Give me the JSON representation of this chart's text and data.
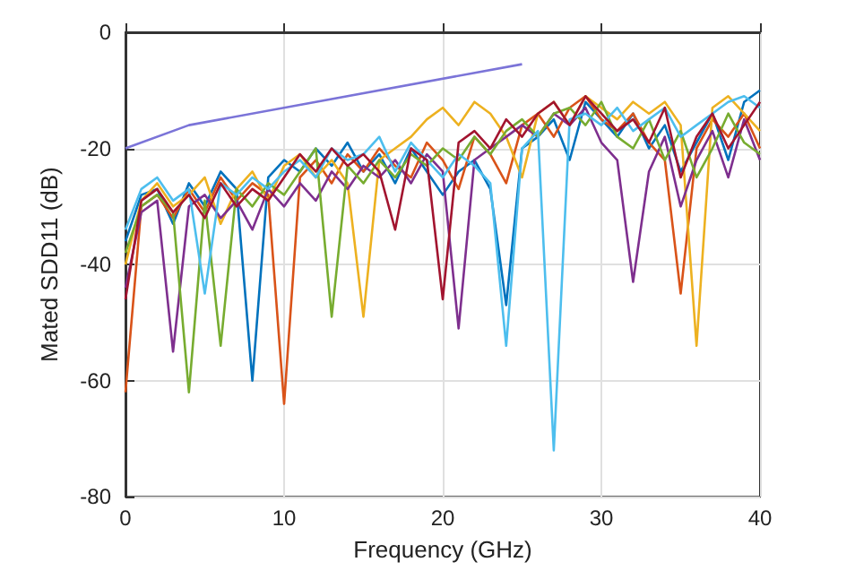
{
  "chart_data": {
    "type": "line",
    "xlabel": "Frequency (GHz)",
    "ylabel": "Mated SDD11 (dB)",
    "x": [
      0,
      1,
      2,
      3,
      4,
      5,
      6,
      7,
      8,
      9,
      10,
      11,
      12,
      13,
      14,
      15,
      16,
      17,
      18,
      19,
      20,
      21,
      22,
      23,
      24,
      25,
      26,
      27,
      28,
      29,
      30,
      31,
      32,
      33,
      34,
      35,
      36,
      37,
      38,
      39,
      40
    ],
    "xlim": [
      0,
      40
    ],
    "xticks": [
      0,
      10,
      20,
      30,
      40
    ],
    "ylim": [
      -80,
      0
    ],
    "yticks": [
      -80,
      -60,
      -40,
      -20,
      0
    ],
    "grid": true,
    "marker": "none",
    "line_style": "solid",
    "series": [
      {
        "color": "#0072bd",
        "values": [
          -36,
          -28,
          -27,
          -33,
          -26,
          -30,
          -24,
          -27,
          -60,
          -25,
          -22,
          -24,
          -20,
          -23,
          -19,
          -24,
          -21,
          -26,
          -20,
          -24,
          -28,
          -24,
          -22,
          -27,
          -47,
          -20,
          -18,
          -15,
          -22,
          -12,
          -15,
          -18,
          -14,
          -20,
          -16,
          -24,
          -19,
          -14,
          -22,
          -12,
          -10
        ]
      },
      {
        "color": "#d95319",
        "values": [
          -62,
          -30,
          -28,
          -32,
          -27,
          -31,
          -25,
          -29,
          -26,
          -28,
          -64,
          -25,
          -22,
          -26,
          -21,
          -24,
          -20,
          -23,
          -25,
          -19,
          -22,
          -27,
          -18,
          -21,
          -26,
          -16,
          -14,
          -18,
          -13,
          -11,
          -15,
          -17,
          -14,
          -19,
          -22,
          -45,
          -20,
          -15,
          -18,
          -14,
          -20
        ]
      },
      {
        "color": "#edb120",
        "values": [
          -40,
          -29,
          -26,
          -30,
          -28,
          -25,
          -33,
          -27,
          -24,
          -29,
          -23,
          -21,
          -25,
          -22,
          -26,
          -49,
          -22,
          -20,
          -18,
          -15,
          -13,
          -16,
          -12,
          -14,
          -18,
          -25,
          -14,
          -12,
          -16,
          -11,
          -13,
          -15,
          -12,
          -14,
          -12,
          -16,
          -54,
          -13,
          -11,
          -14,
          -17
        ]
      },
      {
        "color": "#7e2f8e",
        "values": [
          -44,
          -31,
          -29,
          -55,
          -30,
          -28,
          -32,
          -29,
          -34,
          -27,
          -30,
          -26,
          -29,
          -24,
          -27,
          -23,
          -25,
          -22,
          -26,
          -21,
          -24,
          -51,
          -22,
          -20,
          -18,
          -16,
          -18,
          -14,
          -16,
          -13,
          -19,
          -22,
          -43,
          -24,
          -18,
          -30,
          -22,
          -17,
          -25,
          -15,
          -22
        ]
      },
      {
        "color": "#77ac30",
        "values": [
          -38,
          -30,
          -28,
          -31,
          -62,
          -29,
          -54,
          -27,
          -30,
          -26,
          -28,
          -24,
          -20,
          -49,
          -23,
          -26,
          -22,
          -25,
          -21,
          -23,
          -20,
          -22,
          -18,
          -21,
          -17,
          -15,
          -18,
          -14,
          -13,
          -16,
          -12,
          -18,
          -20,
          -15,
          -22,
          -17,
          -25,
          -20,
          -14,
          -19,
          -21
        ]
      },
      {
        "color": "#4dbeee",
        "values": [
          -34,
          -27,
          -25,
          -29,
          -27,
          -45,
          -26,
          -28,
          -25,
          -27,
          -24,
          -22,
          -25,
          -20,
          -22,
          -21,
          -18,
          -24,
          -19,
          -22,
          -25,
          -21,
          -23,
          -26,
          -54,
          -20,
          -17,
          -72,
          -15,
          -14,
          -16,
          -13,
          -17,
          -15,
          -13,
          -18,
          -16,
          -14,
          -12,
          -11,
          -13
        ]
      },
      {
        "color": "#a2142f",
        "values": [
          -46,
          -29,
          -27,
          -31,
          -28,
          -32,
          -26,
          -30,
          -27,
          -29,
          -25,
          -21,
          -24,
          -20,
          -23,
          -21,
          -24,
          -34,
          -20,
          -22,
          -46,
          -19,
          -17,
          -20,
          -15,
          -18,
          -14,
          -12,
          -16,
          -11,
          -14,
          -17,
          -15,
          -19,
          -13,
          -25,
          -18,
          -14,
          -20,
          -16,
          -12
        ]
      },
      {
        "color": "#7b74d8",
        "x": [
          0,
          4,
          25
        ],
        "values": [
          -20,
          -16,
          -5.5
        ]
      }
    ]
  }
}
